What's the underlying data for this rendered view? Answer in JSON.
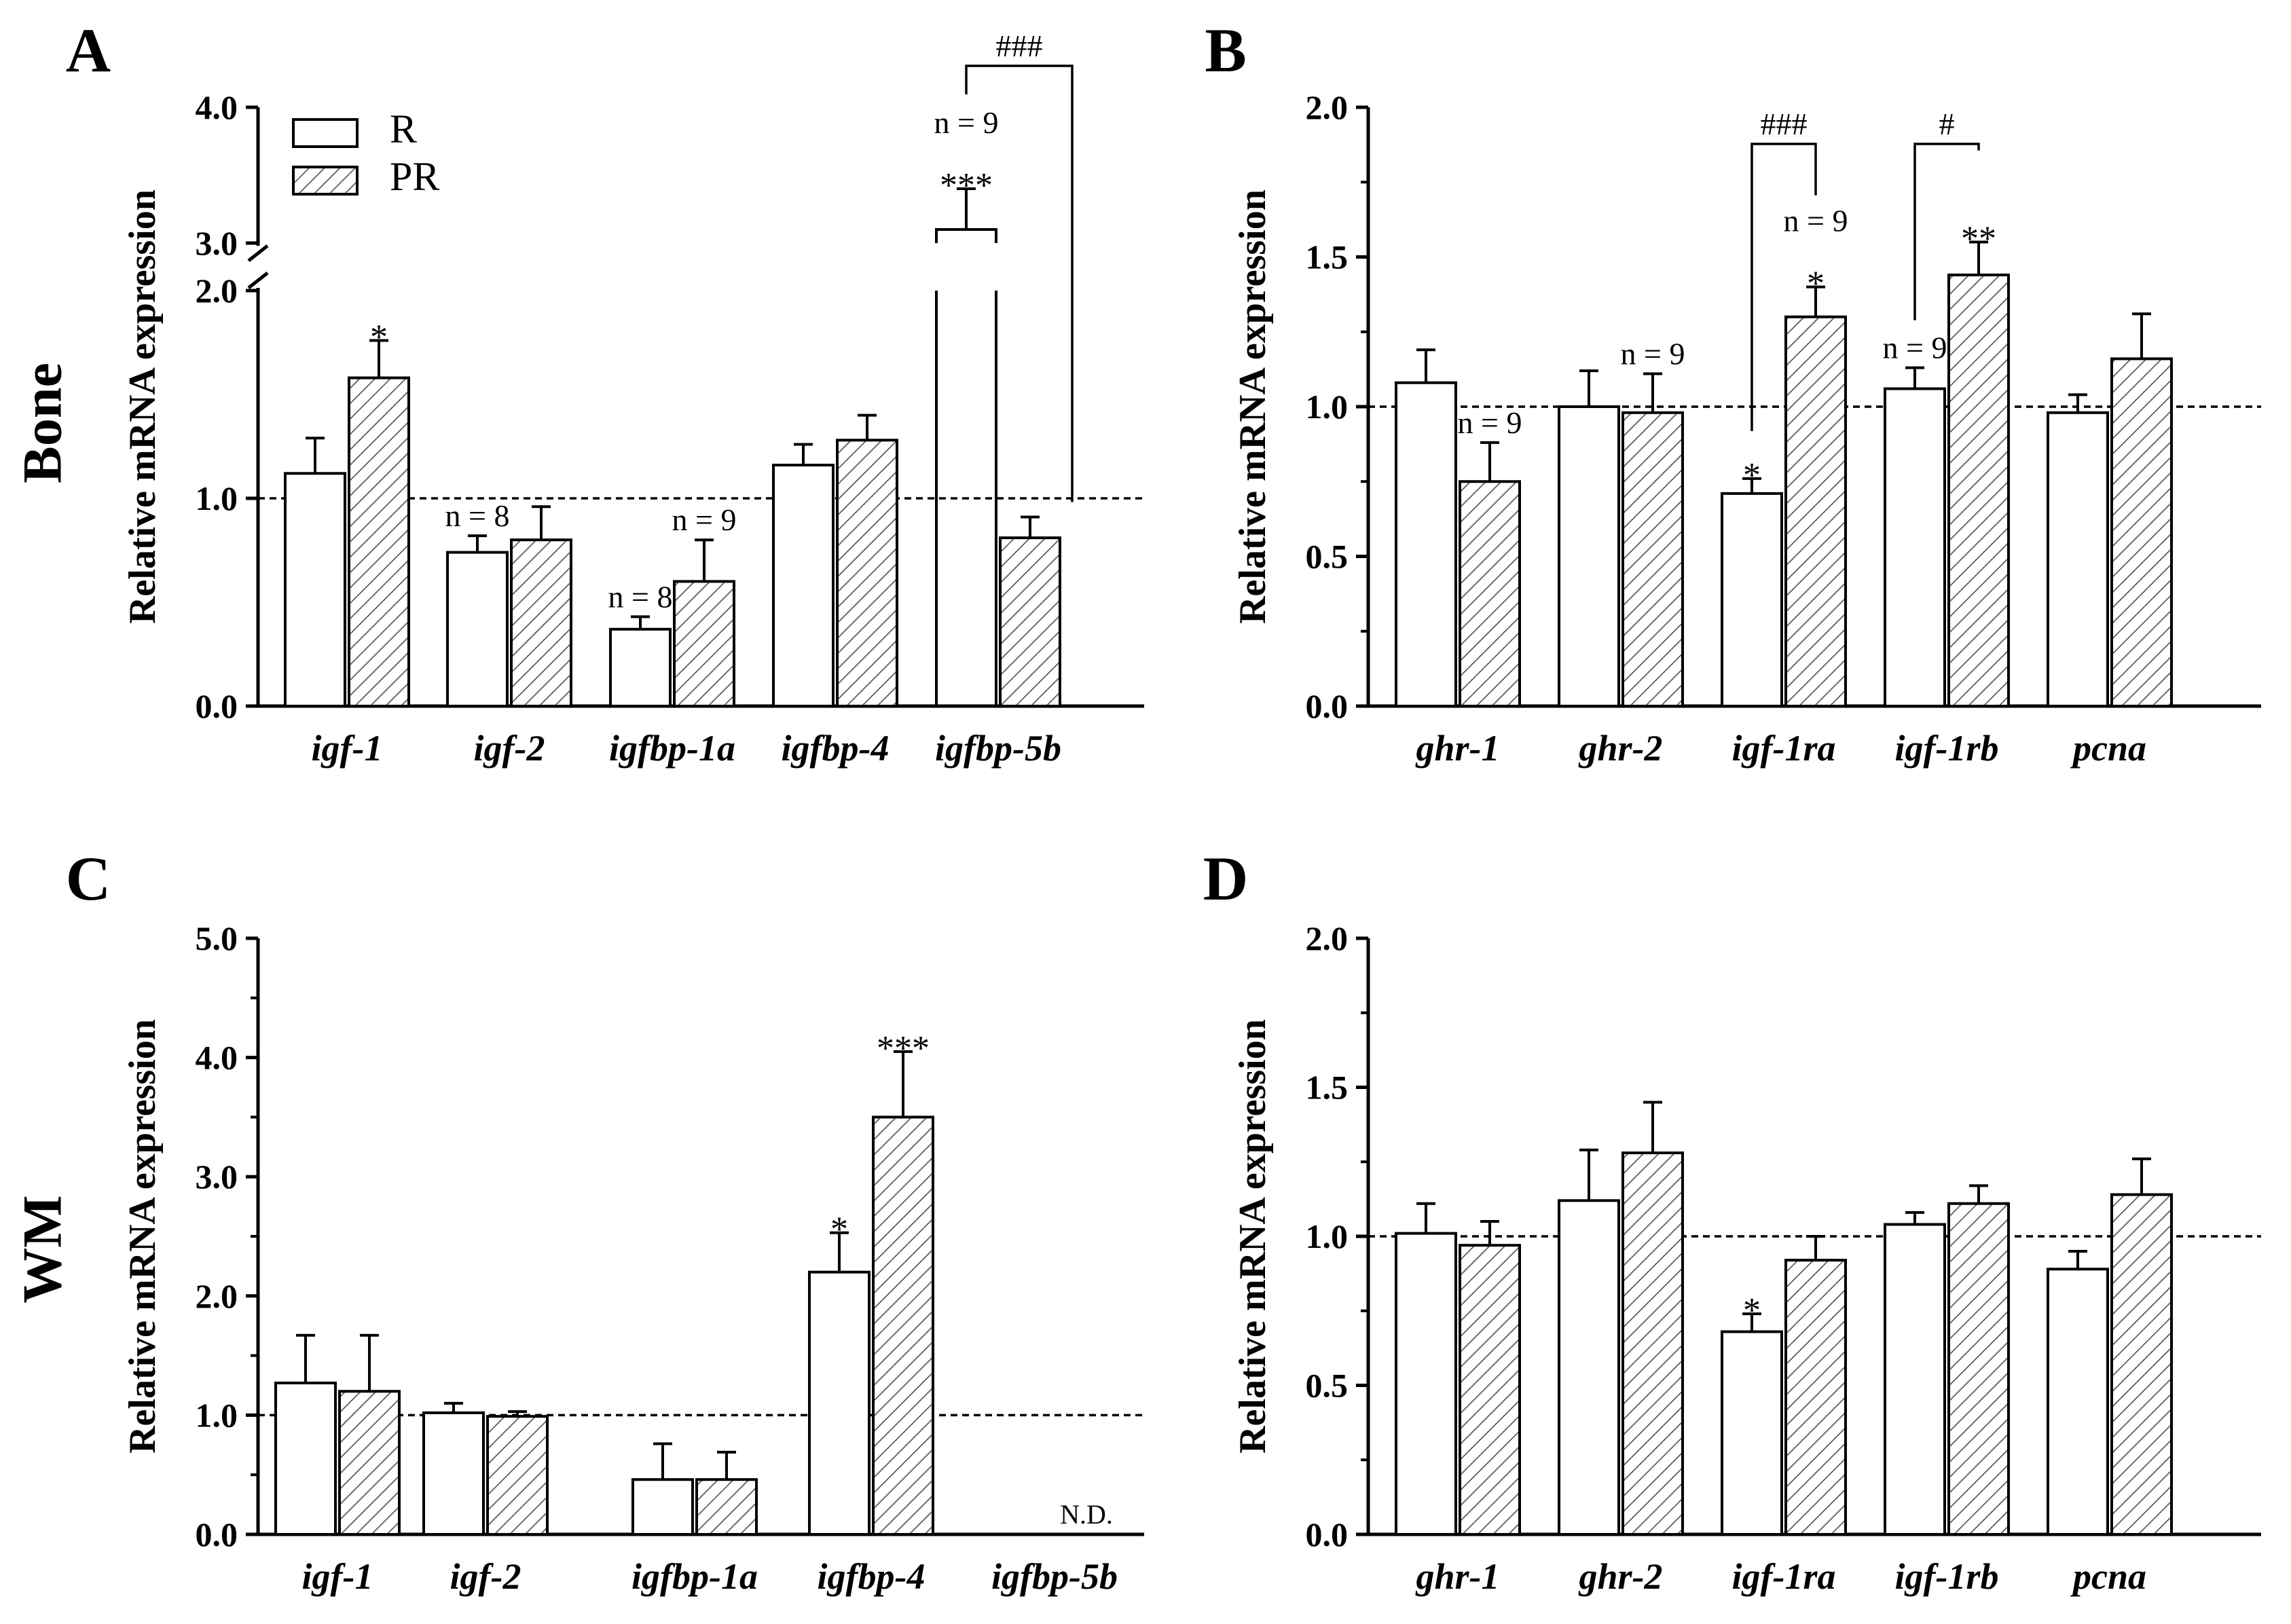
{
  "figure": {
    "row_labels": [
      "Bone",
      "WM"
    ],
    "legend": [
      "R",
      "PR"
    ]
  },
  "chart_data": [
    {
      "panel": "A",
      "type": "bar",
      "ylabel": "Relative mRNA expression",
      "axis_break": {
        "lower": [
          0,
          2.0
        ],
        "upper": [
          3.0,
          4.0
        ]
      },
      "yticks": [
        "0.0",
        "1.0",
        "2.0",
        "3.0",
        "4.0"
      ],
      "reference_line": 1.0,
      "categories": [
        "igf-1",
        "igf-2",
        "igfbp-1a",
        "igfbp-4",
        "igfbp-5b"
      ],
      "series": [
        {
          "name": "R",
          "values": [
            1.12,
            0.74,
            0.37,
            1.16,
            3.1
          ],
          "errors": [
            0.17,
            0.08,
            0.06,
            0.1,
            0.3
          ]
        },
        {
          "name": "PR",
          "values": [
            1.58,
            0.8,
            0.6,
            1.28,
            0.81
          ],
          "errors": [
            0.18,
            0.16,
            0.2,
            0.12,
            0.1
          ]
        }
      ],
      "annotations": [
        {
          "group": 0,
          "series": 1,
          "text": "*"
        },
        {
          "group": 1,
          "series": 0,
          "text": "n = 8"
        },
        {
          "group": 2,
          "series": 0,
          "text": "n = 8"
        },
        {
          "group": 2,
          "series": 1,
          "text": "n = 9"
        },
        {
          "group": 4,
          "series": 0,
          "text": "***"
        },
        {
          "group": 4,
          "series": 0,
          "text": "n = 9"
        }
      ],
      "brackets": [
        {
          "group": 4,
          "text": "###"
        }
      ]
    },
    {
      "panel": "B",
      "type": "bar",
      "ylabel": "Relative mRNA expression",
      "yticks": [
        "0.0",
        "0.5",
        "1.0",
        "1.5",
        "2.0"
      ],
      "ylim": [
        0,
        2.0
      ],
      "reference_line": 1.0,
      "categories": [
        "ghr-1",
        "ghr-2",
        "igf-1ra",
        "igf-1rb",
        "pcna"
      ],
      "series": [
        {
          "name": "R",
          "values": [
            1.08,
            1.0,
            0.71,
            1.06,
            0.98
          ],
          "errors": [
            0.11,
            0.12,
            0.05,
            0.07,
            0.06
          ]
        },
        {
          "name": "PR",
          "values": [
            0.75,
            0.98,
            1.3,
            1.44,
            1.16
          ],
          "errors": [
            0.13,
            0.13,
            0.1,
            0.11,
            0.15
          ]
        }
      ],
      "annotations": [
        {
          "group": 0,
          "series": 1,
          "text": "n = 9"
        },
        {
          "group": 1,
          "series": 1,
          "text": "n = 9"
        },
        {
          "group": 2,
          "series": 0,
          "text": "*"
        },
        {
          "group": 2,
          "series": 1,
          "text": "*"
        },
        {
          "group": 2,
          "series": 1,
          "text": "n = 9"
        },
        {
          "group": 3,
          "series": 0,
          "text": "n = 9"
        },
        {
          "group": 3,
          "series": 1,
          "text": "**"
        }
      ],
      "brackets": [
        {
          "group": 2,
          "text": "###"
        },
        {
          "group": 3,
          "text": "#"
        }
      ]
    },
    {
      "panel": "C",
      "type": "bar",
      "ylabel": "Relative mRNA expression",
      "yticks": [
        "0.0",
        "1.0",
        "2.0",
        "3.0",
        "4.0",
        "5.0"
      ],
      "ylim": [
        0,
        5.0
      ],
      "reference_line": 1.0,
      "categories": [
        "igf-1",
        "igf-2",
        "igfbp-1a",
        "igfbp-4",
        "igfbp-5b"
      ],
      "series": [
        {
          "name": "R",
          "values": [
            1.27,
            1.02,
            0.46,
            2.2,
            null
          ],
          "errors": [
            0.4,
            0.08,
            0.3,
            0.33,
            null
          ]
        },
        {
          "name": "PR",
          "values": [
            1.2,
            0.99,
            0.46,
            3.5,
            null
          ],
          "errors": [
            0.47,
            0.04,
            0.23,
            0.55,
            null
          ]
        }
      ],
      "annotations": [
        {
          "group": 3,
          "series": 0,
          "text": "*"
        },
        {
          "group": 3,
          "series": 1,
          "text": "***"
        },
        {
          "group": 4,
          "series": 1,
          "text": "N.D."
        }
      ],
      "brackets": []
    },
    {
      "panel": "D",
      "type": "bar",
      "ylabel": "Relative mRNA expression",
      "yticks": [
        "0.0",
        "0.5",
        "1.0",
        "1.5",
        "2.0"
      ],
      "ylim": [
        0,
        2.0
      ],
      "reference_line": 1.0,
      "categories": [
        "ghr-1",
        "ghr-2",
        "igf-1ra",
        "igf-1rb",
        "pcna"
      ],
      "series": [
        {
          "name": "R",
          "values": [
            1.01,
            1.12,
            0.68,
            1.04,
            0.89
          ],
          "errors": [
            0.1,
            0.17,
            0.06,
            0.04,
            0.06
          ]
        },
        {
          "name": "PR",
          "values": [
            0.97,
            1.28,
            0.92,
            1.11,
            1.14
          ],
          "errors": [
            0.08,
            0.17,
            0.08,
            0.06,
            0.12
          ]
        }
      ],
      "annotations": [
        {
          "group": 2,
          "series": 0,
          "text": "*"
        }
      ],
      "brackets": []
    }
  ]
}
